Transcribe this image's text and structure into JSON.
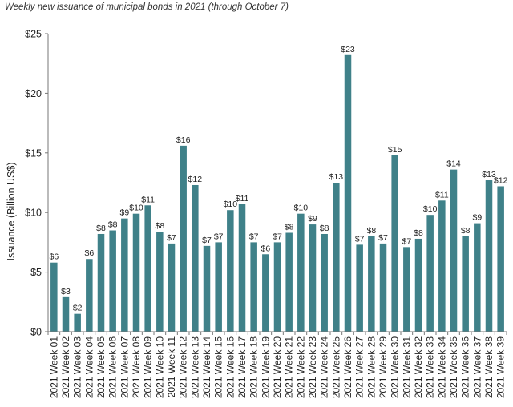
{
  "chart_data": {
    "type": "bar",
    "title": "Weekly new issuance of municipal bonds in 2021 (through October 7)",
    "ylabel": "Issuance (Billion US$)",
    "xlabel": "",
    "ylim": [
      0,
      25
    ],
    "yticks": [
      0,
      5,
      10,
      15,
      20,
      25
    ],
    "ytick_labels": [
      "$0",
      "$5",
      "$10",
      "$15",
      "$20",
      "$25"
    ],
    "grid": false,
    "bar_color": "#3f8189",
    "categories": [
      "2021 Week 01",
      "2021 Week 02",
      "2021 Week 03",
      "2021 Week 04",
      "2021 Week 05",
      "2021 Week 06",
      "2021 Week 07",
      "2021 Week 08",
      "2021 Week 09",
      "2021 Week 10",
      "2021 Week 11",
      "2021 Week 12",
      "2021 Week 13",
      "2021 Week 14",
      "2021 Week 15",
      "2021 Week 16",
      "2021 Week 17",
      "2021 Week 18",
      "2021 Week 19",
      "2021 Week 20",
      "2021 Week 21",
      "2021 Week 22",
      "2021 Week 23",
      "2021 Week 24",
      "2021 Week 25",
      "2021 Week 26",
      "2021 Week 27",
      "2021 Week 28",
      "2021 Week 29",
      "2021 Week 30",
      "2021 Week 31",
      "2021 Week 32",
      "2021 Week 33",
      "2021 Week 34",
      "2021 Week 35",
      "2021 Week 36",
      "2021 Week 37",
      "2021 Week 38",
      "2021 Week 39"
    ],
    "values": [
      5.8,
      2.9,
      1.5,
      6.1,
      8.2,
      8.5,
      9.5,
      9.9,
      10.6,
      8.4,
      7.4,
      15.6,
      12.3,
      7.2,
      7.5,
      10.2,
      10.7,
      7.5,
      6.5,
      7.5,
      8.3,
      9.9,
      9.0,
      8.2,
      12.5,
      23.2,
      7.3,
      8.0,
      7.4,
      14.8,
      7.1,
      7.8,
      9.8,
      11.0,
      13.6,
      8.0,
      9.1,
      12.7,
      12.2
    ],
    "data_labels": [
      "$6",
      "$3",
      "$2",
      "$6",
      "$8",
      "$8",
      "$9",
      "$10",
      "$11",
      "$8",
      "$7",
      "$16",
      "$12",
      "$7",
      "$7",
      "$10",
      "$11",
      "$7",
      "$6",
      "$7",
      "$8",
      "$10",
      "$9",
      "$8",
      "$13",
      "$23",
      "$7",
      "$8",
      "$7",
      "$15",
      "$7",
      "$8",
      "$10",
      "$11",
      "$14",
      "$8",
      "$9",
      "$13",
      "$12"
    ]
  }
}
